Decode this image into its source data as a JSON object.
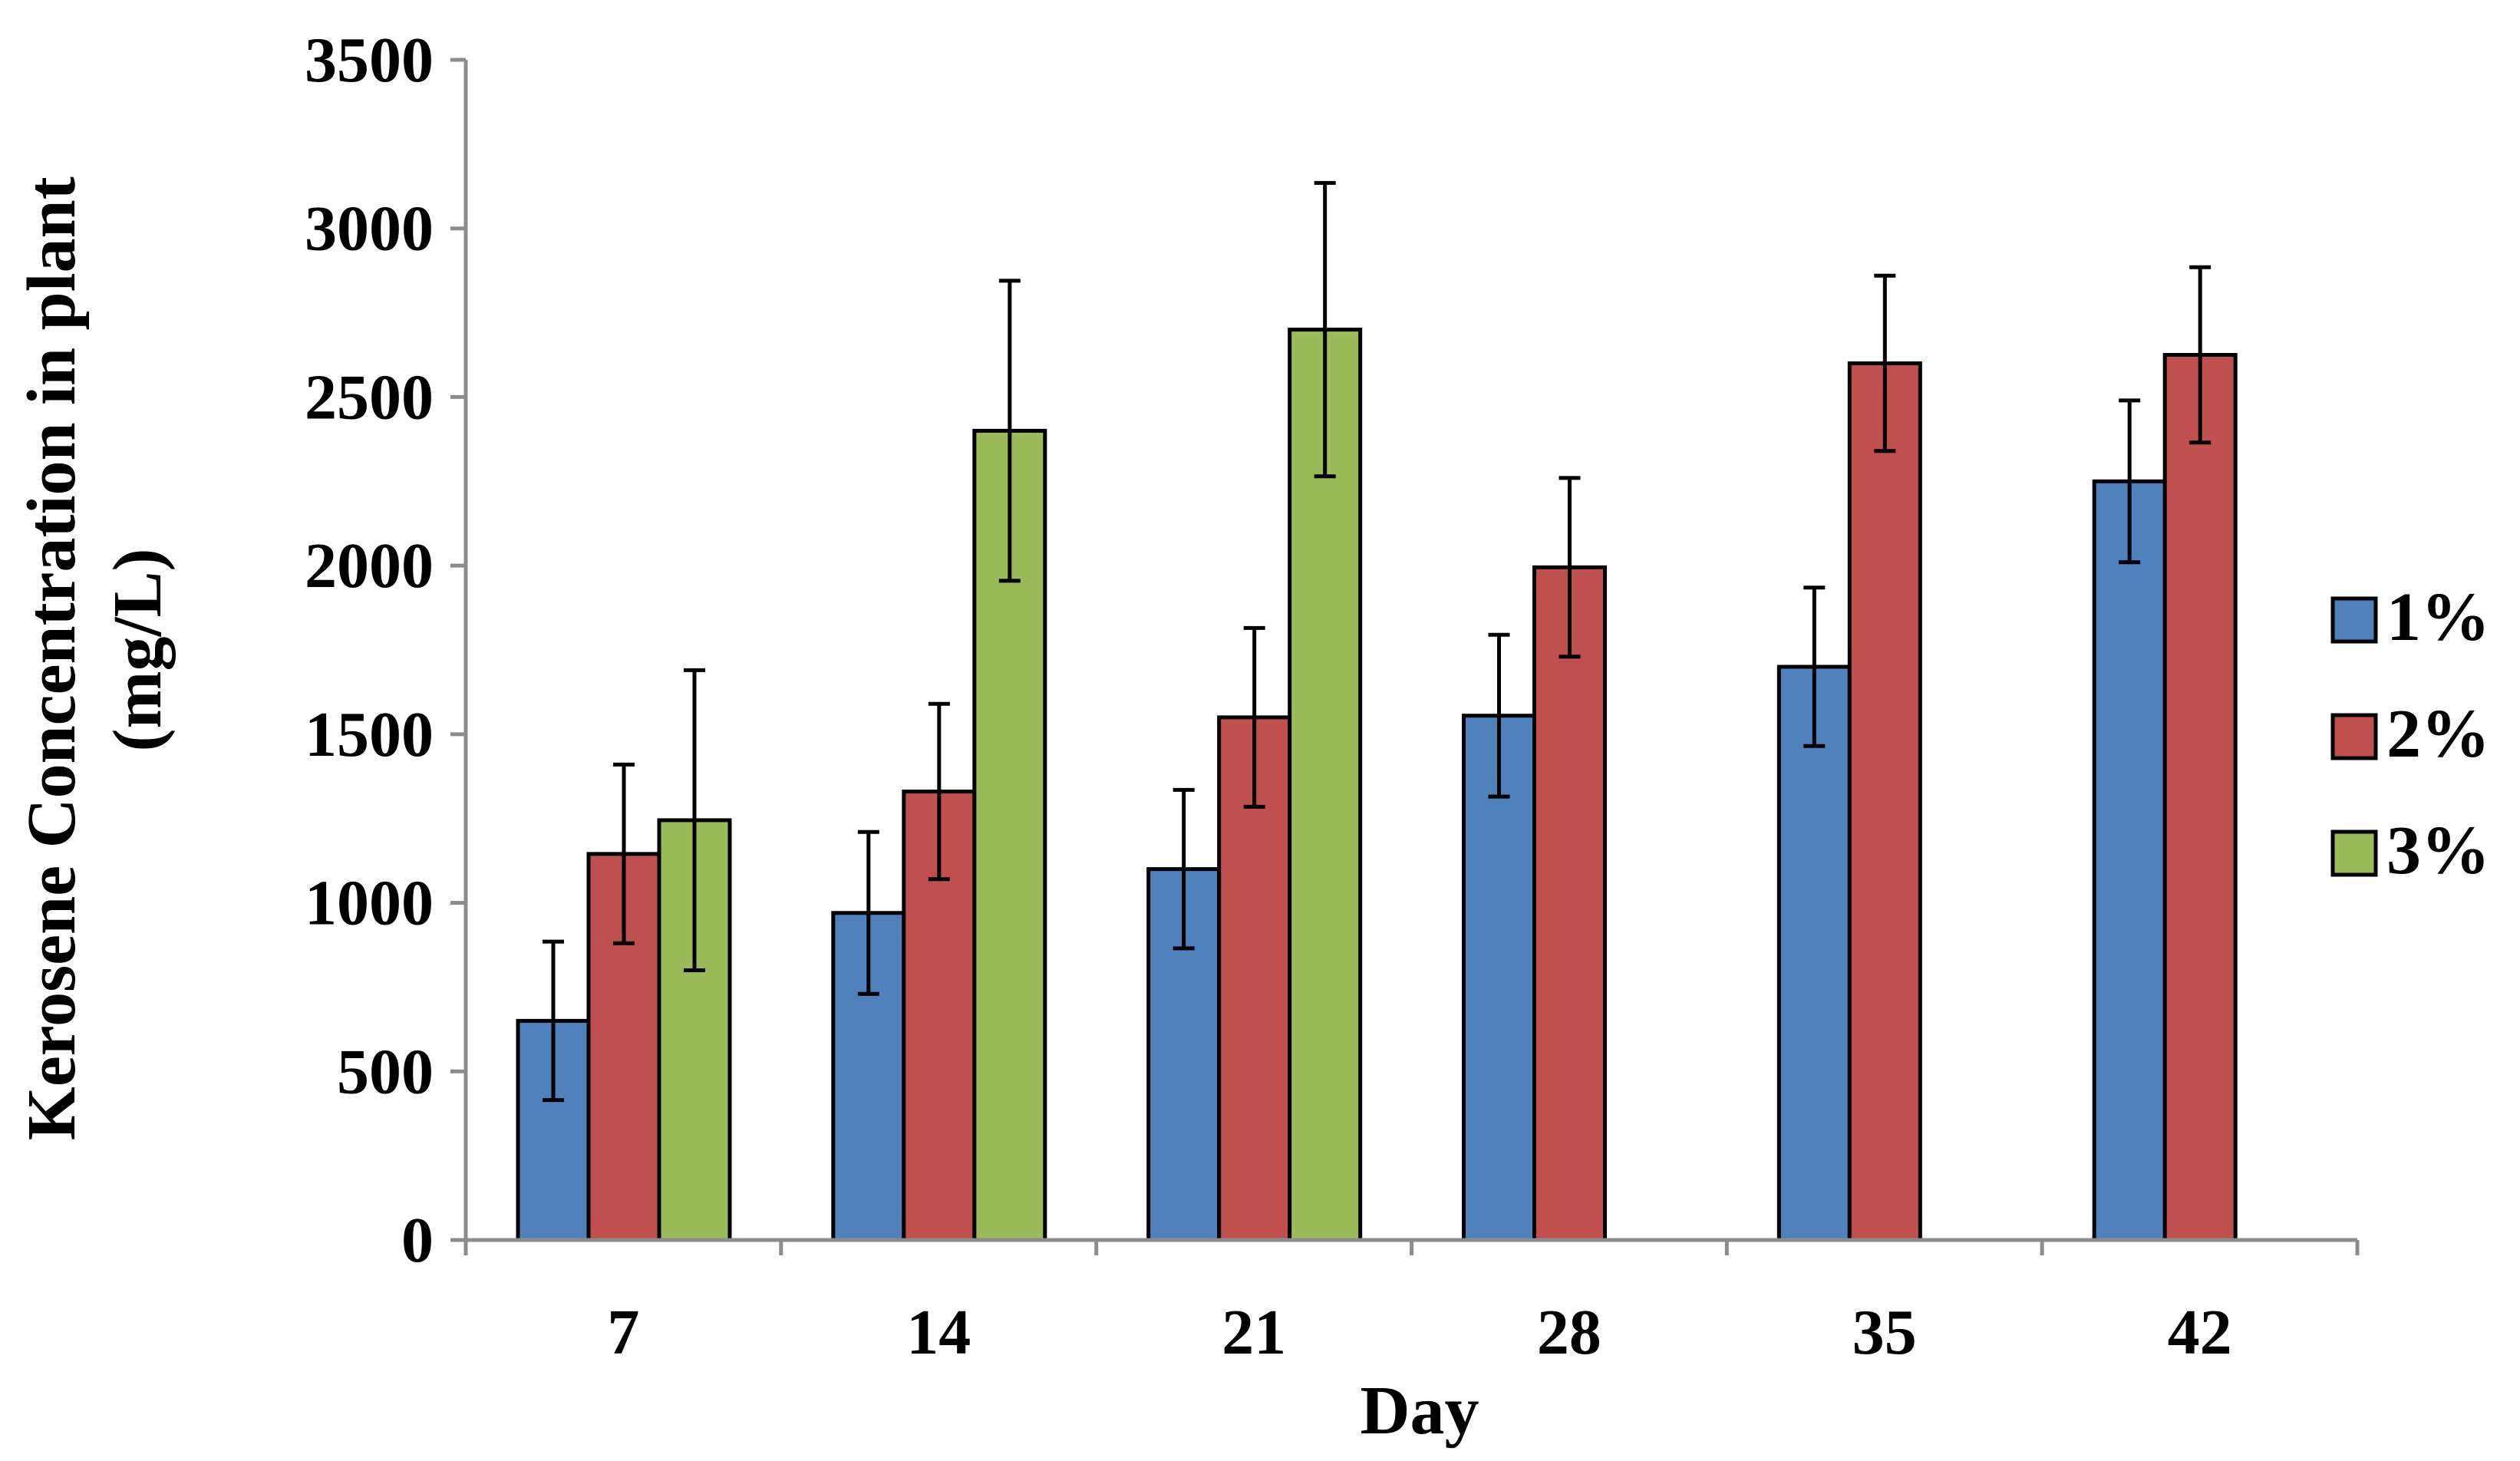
{
  "chart_data": {
    "type": "bar",
    "title": "",
    "xlabel": "Day",
    "ylabel": [
      "Kerosene Concentration in plant",
      "(mg/L)"
    ],
    "ylim": [
      0,
      3500
    ],
    "yticks": [
      0,
      500,
      1000,
      1500,
      2000,
      2500,
      3000,
      3500
    ],
    "categories": [
      "7",
      "14",
      "21",
      "28",
      "35",
      "42"
    ],
    "series": [
      {
        "name": "1%",
        "color": "#4f81bd",
        "values": [
          650,
          970,
          1100,
          1555,
          1700,
          2250
        ],
        "errors": [
          235,
          240,
          235,
          240,
          235,
          240
        ]
      },
      {
        "name": "2%",
        "color": "#c0504d",
        "values": [
          1145,
          1330,
          1550,
          1995,
          2600,
          2625
        ],
        "errors": [
          265,
          260,
          265,
          265,
          260,
          260
        ]
      },
      {
        "name": "3%",
        "color": "#9bbb59",
        "values": [
          1245,
          2400,
          2700,
          null,
          null,
          null
        ],
        "errors": [
          445,
          445,
          435,
          null,
          null,
          null
        ]
      }
    ],
    "legend": "right",
    "grid": false
  }
}
